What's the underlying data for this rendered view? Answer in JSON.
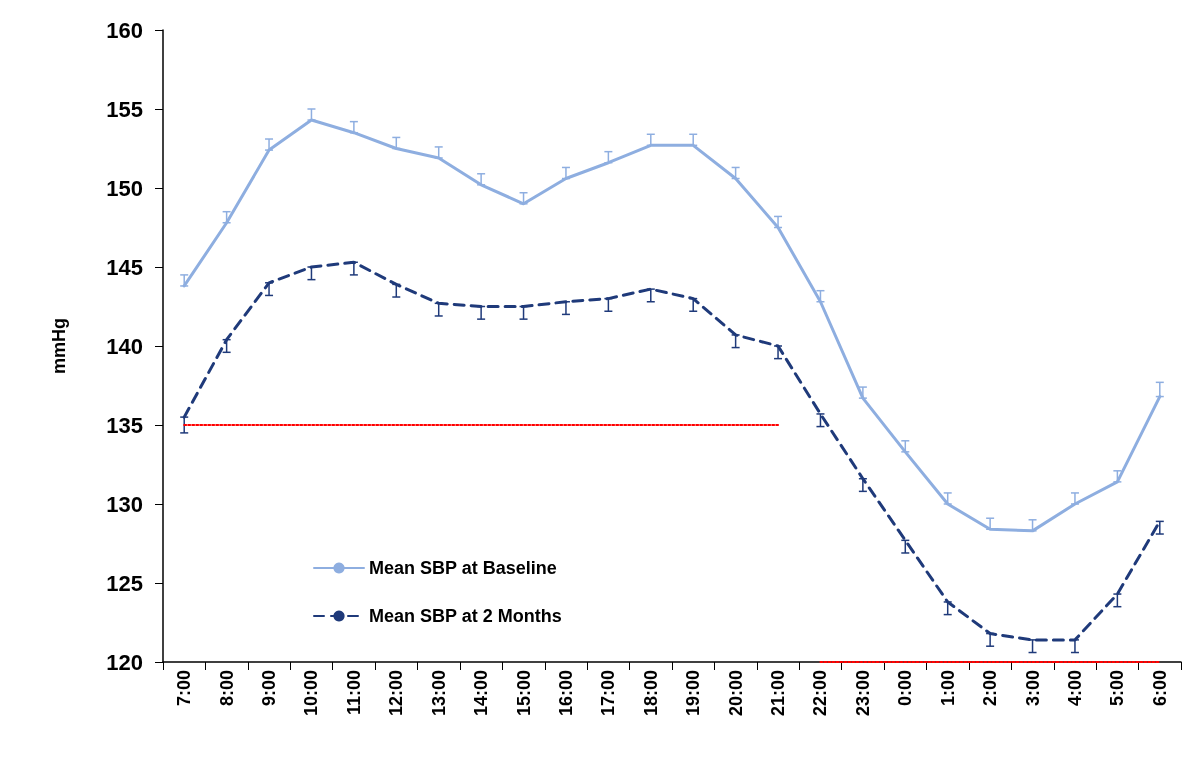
{
  "chart_data": {
    "type": "line",
    "ylabel": "mmHg",
    "categories": [
      "7:00",
      "8:00",
      "9:00",
      "10:00",
      "11:00",
      "12:00",
      "13:00",
      "14:00",
      "15:00",
      "16:00",
      "17:00",
      "18:00",
      "19:00",
      "20:00",
      "21:00",
      "22:00",
      "23:00",
      "0:00",
      "1:00",
      "2:00",
      "3:00",
      "4:00",
      "5:00",
      "6:00"
    ],
    "ylim": [
      120,
      160
    ],
    "yticks": [
      120,
      125,
      130,
      135,
      140,
      145,
      150,
      155,
      160
    ],
    "grid": false,
    "legend": "bottom left",
    "marker": "none",
    "series": [
      {
        "name": "Mean SBP at Baseline",
        "color": "#8eaee0",
        "line_style": "solid",
        "values": [
          143.8,
          147.8,
          152.4,
          154.3,
          153.5,
          152.5,
          151.9,
          150.2,
          149.0,
          150.6,
          151.6,
          152.7,
          152.7,
          150.6,
          147.5,
          142.8,
          136.7,
          133.3,
          130.0,
          128.4,
          128.3,
          130.0,
          131.4,
          136.8
        ],
        "errors": [
          [
            143.8,
            144.5
          ],
          [
            147.8,
            148.5
          ],
          [
            152.4,
            153.1
          ],
          [
            154.3,
            155.0
          ],
          [
            153.5,
            154.2
          ],
          [
            152.5,
            153.2
          ],
          [
            151.9,
            152.6
          ],
          [
            150.2,
            150.9
          ],
          [
            149.0,
            149.7
          ],
          [
            150.6,
            151.3
          ],
          [
            151.6,
            152.3
          ],
          [
            152.7,
            153.4
          ],
          [
            152.7,
            153.4
          ],
          [
            150.6,
            151.3
          ],
          [
            147.5,
            148.2
          ],
          [
            142.8,
            143.5
          ],
          [
            136.7,
            137.4
          ],
          [
            133.3,
            134.0
          ],
          [
            130.0,
            130.7
          ],
          [
            128.4,
            129.1
          ],
          [
            128.3,
            129.0
          ],
          [
            130.0,
            130.7
          ],
          [
            131.4,
            132.1
          ],
          [
            136.8,
            137.7
          ]
        ]
      },
      {
        "name": "Mean SBP at 2 Months",
        "color": "#1f3a7a",
        "line_style": "dashed",
        "values": [
          135.5,
          140.4,
          144.0,
          145.0,
          145.3,
          143.9,
          142.7,
          142.5,
          142.5,
          142.8,
          143.0,
          143.6,
          143.0,
          140.7,
          140.0,
          135.7,
          131.6,
          127.7,
          123.8,
          121.8,
          121.4,
          121.4,
          124.3,
          128.9
        ],
        "errors": [
          [
            134.5,
            135.5
          ],
          [
            139.6,
            140.4
          ],
          [
            143.2,
            144.0
          ],
          [
            144.2,
            145.0
          ],
          [
            144.5,
            145.3
          ],
          [
            143.1,
            143.9
          ],
          [
            141.9,
            142.7
          ],
          [
            141.7,
            142.5
          ],
          [
            141.7,
            142.5
          ],
          [
            142.0,
            142.8
          ],
          [
            142.2,
            143.0
          ],
          [
            142.8,
            143.6
          ],
          [
            142.2,
            143.0
          ],
          [
            139.9,
            140.7
          ],
          [
            139.2,
            140.0
          ],
          [
            134.9,
            135.7
          ],
          [
            130.8,
            131.6
          ],
          [
            126.9,
            127.7
          ],
          [
            123.0,
            123.8
          ],
          [
            121.0,
            121.8
          ],
          [
            120.6,
            121.4
          ],
          [
            120.6,
            121.4
          ],
          [
            123.5,
            124.3
          ],
          [
            128.1,
            128.9
          ]
        ]
      },
      {
        "type": "line",
        "color": "#ff0000",
        "line_style": "dotted",
        "values": [
          135,
          135,
          135,
          135,
          135,
          135,
          135,
          135,
          135,
          135,
          135,
          135,
          135,
          135,
          135,
          null,
          null,
          null,
          null,
          null,
          null,
          null,
          null,
          null
        ]
      },
      {
        "type": "line",
        "color": "#ff0000",
        "line_style": "dotted",
        "values": [
          null,
          null,
          null,
          null,
          null,
          null,
          null,
          null,
          null,
          null,
          null,
          null,
          null,
          null,
          null,
          120,
          120,
          120,
          120,
          120,
          120,
          120,
          120,
          120
        ]
      }
    ]
  }
}
